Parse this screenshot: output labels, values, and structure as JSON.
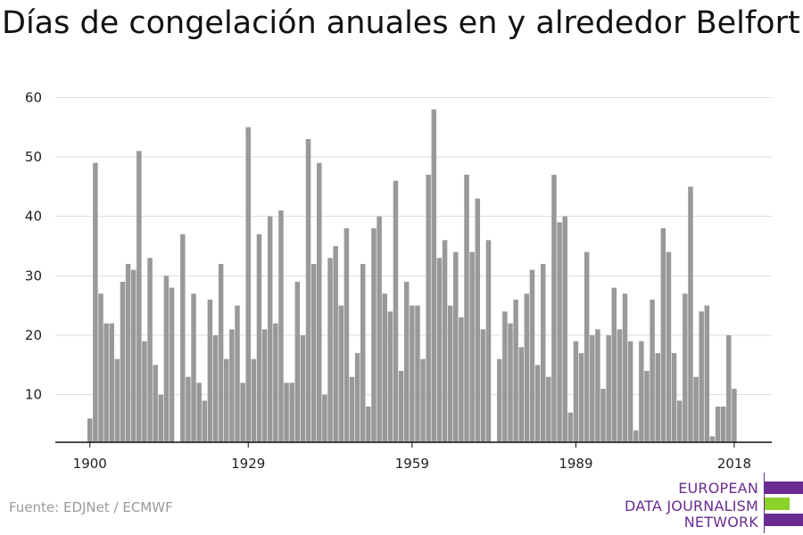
{
  "chart_data": {
    "type": "bar",
    "title": "Días de congelación anuales en y alrededor Belfort",
    "xlabel": "",
    "ylabel": "",
    "ylim": [
      2,
      62
    ],
    "yticks": [
      10,
      20,
      30,
      40,
      50,
      60
    ],
    "xtick_labels": [
      "1900",
      "1929",
      "1959",
      "1989",
      "2018"
    ],
    "x_start": 1900,
    "grid": true,
    "bar_color": "#999999",
    "values": [
      6,
      49,
      27,
      22,
      22,
      16,
      29,
      32,
      31,
      51,
      19,
      33,
      15,
      10,
      30,
      28,
      2,
      37,
      13,
      27,
      12,
      9,
      26,
      20,
      32,
      16,
      21,
      25,
      12,
      55,
      16,
      37,
      21,
      40,
      22,
      41,
      12,
      12,
      29,
      20,
      53,
      32,
      49,
      10,
      33,
      35,
      25,
      38,
      13,
      17,
      32,
      8,
      38,
      40,
      27,
      24,
      46,
      14,
      29,
      25,
      25,
      16,
      47,
      58,
      33,
      36,
      25,
      34,
      23,
      47,
      34,
      43,
      21,
      36,
      2,
      16,
      24,
      22,
      26,
      18,
      27,
      31,
      15,
      32,
      13,
      47,
      39,
      40,
      7,
      19,
      17,
      34,
      20,
      21,
      11,
      20,
      28,
      21,
      27,
      19,
      4,
      19,
      14,
      26,
      17,
      38,
      34,
      17,
      9,
      27,
      45,
      13,
      24,
      25,
      3,
      8,
      8,
      20,
      11
    ]
  },
  "source": "Fuente: EDJNet / ECMWF",
  "logo": {
    "lines": [
      "EUROPEAN",
      "DATA JOURNALISM",
      "NETWORK"
    ],
    "colors": {
      "purple": "#6a2c91",
      "green": "#8cd22a"
    }
  }
}
